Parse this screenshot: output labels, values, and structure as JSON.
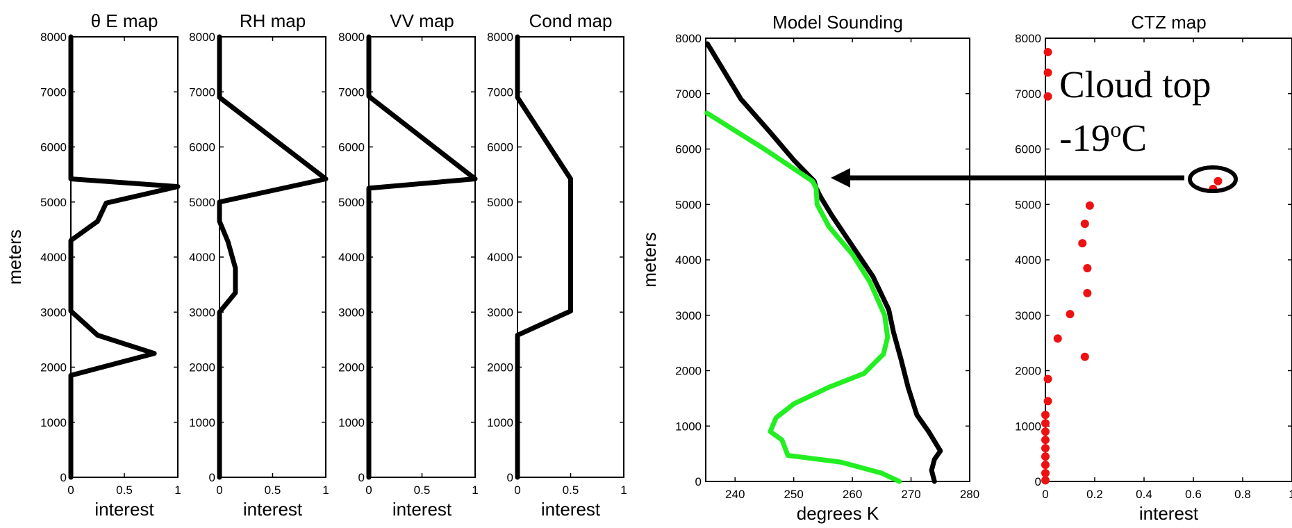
{
  "chart_data": [
    {
      "type": "line",
      "title": "θ E map",
      "xlabel": "interest",
      "ylabel": "meters",
      "xlim": [
        0,
        1
      ],
      "ylim": [
        0,
        8000
      ],
      "xticks": [
        "0",
        "0.5",
        "1"
      ],
      "yticks": [
        "0",
        "1000",
        "2000",
        "3000",
        "4000",
        "5000",
        "6000",
        "7000",
        "8000"
      ],
      "series": [
        {
          "color": "#000000",
          "points": [
            [
              0,
              0
            ],
            [
              0,
              1850
            ],
            [
              0.78,
              2250
            ],
            [
              0.25,
              2580
            ],
            [
              0,
              3020
            ],
            [
              0,
              4300
            ],
            [
              0.25,
              4650
            ],
            [
              0.33,
              4980
            ],
            [
              1,
              5280
            ],
            [
              0,
              5420
            ],
            [
              0,
              8000
            ]
          ]
        }
      ]
    },
    {
      "type": "line",
      "title": "RH map",
      "xlabel": "interest",
      "ylabel": "",
      "xlim": [
        0,
        1
      ],
      "ylim": [
        0,
        8000
      ],
      "xticks": [
        "0",
        "0.5",
        "1"
      ],
      "yticks": [
        "0",
        "1000",
        "2000",
        "3000",
        "4000",
        "5000",
        "6000",
        "7000",
        "8000"
      ],
      "series": [
        {
          "color": "#000000",
          "points": [
            [
              0,
              0
            ],
            [
              0,
              3000
            ],
            [
              0.15,
              3350
            ],
            [
              0.15,
              3800
            ],
            [
              0.08,
              4280
            ],
            [
              0,
              4650
            ],
            [
              0,
              5000
            ],
            [
              1,
              5420
            ],
            [
              0,
              6900
            ],
            [
              0,
              8000
            ]
          ]
        }
      ]
    },
    {
      "type": "line",
      "title": "VV map",
      "xlabel": "interest",
      "ylabel": "",
      "xlim": [
        0,
        1
      ],
      "ylim": [
        0,
        8000
      ],
      "xticks": [
        "0",
        "0.5",
        "1"
      ],
      "yticks": [
        "0",
        "1000",
        "2000",
        "3000",
        "4000",
        "5000",
        "6000",
        "7000",
        "8000"
      ],
      "series": [
        {
          "color": "#000000",
          "points": [
            [
              0,
              0
            ],
            [
              0,
              5250
            ],
            [
              1,
              5420
            ],
            [
              0,
              6920
            ],
            [
              0,
              8000
            ]
          ]
        }
      ]
    },
    {
      "type": "line",
      "title": "Cond map",
      "xlabel": "interest",
      "ylabel": "",
      "xlim": [
        0,
        1
      ],
      "ylim": [
        0,
        8000
      ],
      "xticks": [
        "0",
        "0.5",
        "1"
      ],
      "yticks": [
        "0",
        "1000",
        "2000",
        "3000",
        "4000",
        "5000",
        "6000",
        "7000",
        "8000"
      ],
      "series": [
        {
          "color": "#000000",
          "points": [
            [
              0,
              0
            ],
            [
              0,
              2580
            ],
            [
              0.5,
              3020
            ],
            [
              0.5,
              5420
            ],
            [
              0,
              6900
            ],
            [
              0,
              8000
            ]
          ]
        }
      ]
    },
    {
      "type": "line",
      "title": "Model Sounding",
      "xlabel": "degrees K",
      "ylabel": "meters",
      "xlim": [
        235,
        280
      ],
      "ylim": [
        0,
        8000
      ],
      "xticks": [
        "240",
        "250",
        "260",
        "270",
        "280"
      ],
      "yticks": [
        "0",
        "1000",
        "2000",
        "3000",
        "4000",
        "5000",
        "6000",
        "7000",
        "8000"
      ],
      "series": [
        {
          "color": "#000000",
          "points": [
            [
              274,
              0
            ],
            [
              273.5,
              200
            ],
            [
              274,
              400
            ],
            [
              275,
              550
            ],
            [
              273,
              900
            ],
            [
              271,
              1200
            ],
            [
              269.5,
              1700
            ],
            [
              268.3,
              2200
            ],
            [
              267,
              2700
            ],
            [
              266.2,
              3100
            ],
            [
              263.5,
              3700
            ],
            [
              260,
              4250
            ],
            [
              256.5,
              4800
            ],
            [
              254.5,
              5150
            ],
            [
              253.8,
              5300
            ],
            [
              253.5,
              5420
            ],
            [
              250,
              5800
            ],
            [
              246,
              6300
            ],
            [
              241,
              6900
            ],
            [
              235.3,
              7900
            ]
          ]
        },
        {
          "color": "#22ee22",
          "points": [
            [
              268,
              0
            ],
            [
              265,
              150
            ],
            [
              258,
              350
            ],
            [
              249,
              470
            ],
            [
              248,
              750
            ],
            [
              246,
              900
            ],
            [
              247,
              1150
            ],
            [
              250,
              1400
            ],
            [
              256,
              1700
            ],
            [
              262,
              1950
            ],
            [
              265.3,
              2300
            ],
            [
              266,
              2600
            ],
            [
              265.5,
              3000
            ],
            [
              263,
              3600
            ],
            [
              260,
              4100
            ],
            [
              256,
              4600
            ],
            [
              254,
              5000
            ],
            [
              253.8,
              5300
            ],
            [
              253.2,
              5420
            ],
            [
              245,
              6000
            ],
            [
              235.2,
              6650
            ]
          ]
        }
      ]
    },
    {
      "type": "scatter",
      "title": "CTZ map",
      "xlabel": "interest",
      "ylabel": "",
      "xlim": [
        0,
        1
      ],
      "ylim": [
        0,
        8000
      ],
      "xticks": [
        "0",
        "0.2",
        "0.4",
        "0.6",
        "0.8",
        "1"
      ],
      "yticks": [
        "0",
        "1000",
        "2000",
        "3000",
        "4000",
        "5000",
        "6000",
        "7000",
        "8000"
      ],
      "series": [
        {
          "color": "#ee1111",
          "points": [
            [
              0,
              20
            ],
            [
              0,
              150
            ],
            [
              0,
              300
            ],
            [
              0,
              450
            ],
            [
              0,
              600
            ],
            [
              0,
              750
            ],
            [
              0,
              900
            ],
            [
              0,
              1050
            ],
            [
              0,
              1200
            ],
            [
              0.01,
              1450
            ],
            [
              0.01,
              1850
            ],
            [
              0.16,
              2250
            ],
            [
              0.05,
              2580
            ],
            [
              0.1,
              3020
            ],
            [
              0.17,
              3400
            ],
            [
              0.17,
              3850
            ],
            [
              0.15,
              4300
            ],
            [
              0.16,
              4650
            ],
            [
              0.18,
              4980
            ],
            [
              0.68,
              5280
            ],
            [
              0.7,
              5420
            ],
            [
              0.01,
              6950
            ],
            [
              0.01,
              7380
            ],
            [
              0.01,
              7750
            ]
          ]
        }
      ]
    }
  ],
  "annotation": {
    "cloud_top_line1": "Cloud top",
    "cloud_top_line2_value": "-19",
    "cloud_top_line2_superscript": "o",
    "cloud_top_line2_unit": "C"
  }
}
